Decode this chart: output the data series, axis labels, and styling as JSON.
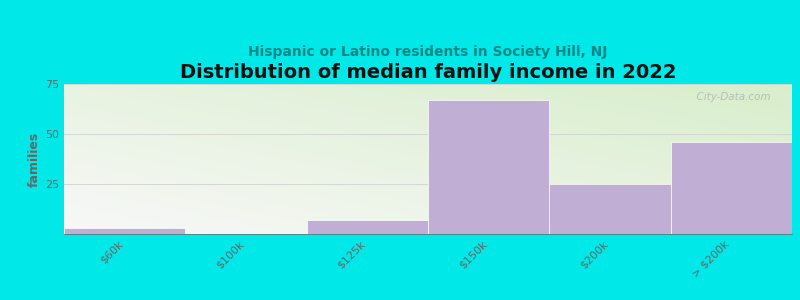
{
  "title": "Distribution of median family income in 2022",
  "subtitle": "Hispanic or Latino residents in Society Hill, NJ",
  "categories": [
    "$60k",
    "$100k",
    "$125k",
    "$150k",
    "$200k",
    "> $200k"
  ],
  "values": [
    3,
    0,
    7,
    67,
    25,
    46
  ],
  "bar_color": "#c0aed4",
  "ylabel": "families",
  "ylim": [
    0,
    75
  ],
  "yticks": [
    0,
    25,
    50,
    75
  ],
  "background_color": "#00e8e8",
  "plot_bg_corner_green": "#d8eecb",
  "plot_bg_corner_white": "#f8f8f8",
  "title_fontsize": 14,
  "subtitle_fontsize": 10,
  "subtitle_color": "#008888",
  "grid_color": "#cccccc",
  "watermark": "  City-Data.com",
  "tick_label_color": "#666666",
  "tick_label_fontsize": 8
}
